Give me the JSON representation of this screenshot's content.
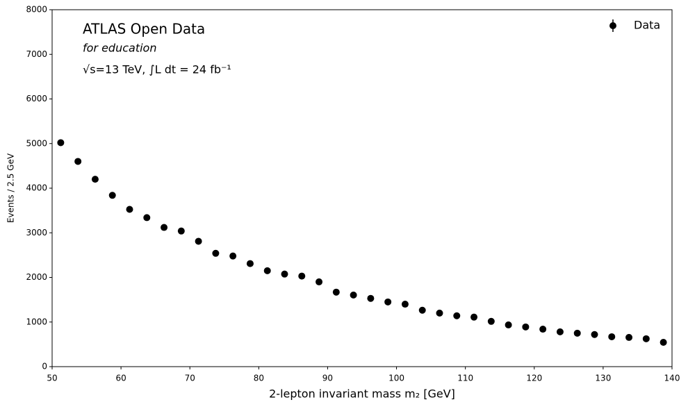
{
  "chart_data": {
    "type": "scatter",
    "title": "ATLAS Open Data",
    "subtitle": "for education",
    "annotation": "√s=13 TeV, ∫L dt = 24 fb⁻¹",
    "x_label": "2-lepton invariant mass m₂ [GeV]",
    "y_label": "Events / 2.5 GeV",
    "legend_position": "upper right",
    "series": [
      {
        "name": "Data",
        "color": "#000000",
        "x": [
          51.25,
          53.75,
          56.25,
          58.75,
          61.25,
          63.75,
          66.25,
          68.75,
          71.25,
          73.75,
          76.25,
          78.75,
          81.25,
          83.75,
          86.25,
          88.75,
          91.25,
          93.75,
          96.25,
          98.75,
          101.25,
          103.75,
          106.25,
          108.75,
          111.25,
          113.75,
          116.25,
          118.75,
          121.25,
          123.75,
          126.25,
          128.75,
          131.25,
          133.75,
          136.25,
          138.75
        ],
        "values": [
          5020,
          4600,
          4200,
          3840,
          3525,
          3340,
          3120,
          3040,
          2810,
          2540,
          2480,
          2310,
          2150,
          2075,
          2030,
          1900,
          1670,
          1605,
          1530,
          1450,
          1400,
          1265,
          1200,
          1140,
          1110,
          1015,
          935,
          890,
          840,
          780,
          750,
          720,
          670,
          655,
          625,
          545
        ]
      }
    ],
    "xlim": [
      50,
      140
    ],
    "xticks": [
      50,
      60,
      70,
      80,
      90,
      100,
      110,
      120,
      130,
      140
    ],
    "ylim": [
      0,
      8000
    ],
    "yticks": [
      0,
      1000,
      2000,
      3000,
      4000,
      5000,
      6000,
      7000,
      8000
    ]
  }
}
